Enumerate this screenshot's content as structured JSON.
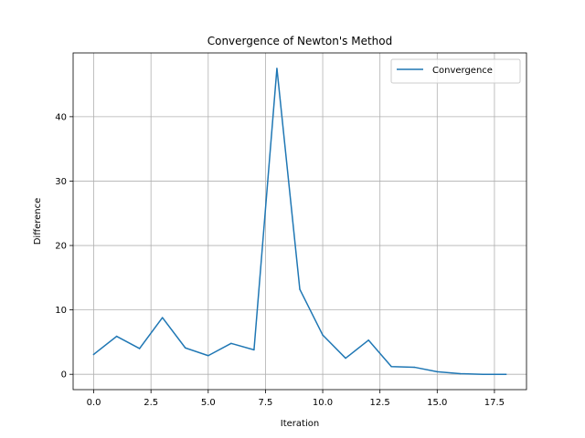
{
  "chart_data": {
    "type": "line",
    "title": "Convergence of Newton's Method",
    "xlabel": "Iteration",
    "ylabel": "Difference",
    "xlim": [
      -0.9,
      18.9
    ],
    "ylim": [
      -2.38,
      49.9
    ],
    "xticks": [
      0.0,
      2.5,
      5.0,
      7.5,
      10.0,
      12.5,
      15.0,
      17.5
    ],
    "xtick_labels": [
      "0.0",
      "2.5",
      "5.0",
      "7.5",
      "10.0",
      "12.5",
      "15.0",
      "17.5"
    ],
    "yticks": [
      0,
      10,
      20,
      30,
      40
    ],
    "ytick_labels": [
      "0",
      "10",
      "20",
      "30",
      "40"
    ],
    "grid": true,
    "legend_position": "top-right",
    "series": [
      {
        "name": "Convergence",
        "color": "#1f77b4",
        "x": [
          0,
          1,
          2,
          3,
          4,
          5,
          6,
          7,
          8,
          9,
          10,
          11,
          12,
          13,
          14,
          15,
          16,
          17,
          18
        ],
        "y": [
          3.1,
          5.9,
          4.0,
          8.8,
          4.1,
          2.9,
          4.8,
          3.8,
          47.5,
          13.2,
          6.1,
          2.5,
          5.3,
          1.2,
          1.1,
          0.4,
          0.1,
          0.0,
          0.0
        ]
      }
    ]
  }
}
